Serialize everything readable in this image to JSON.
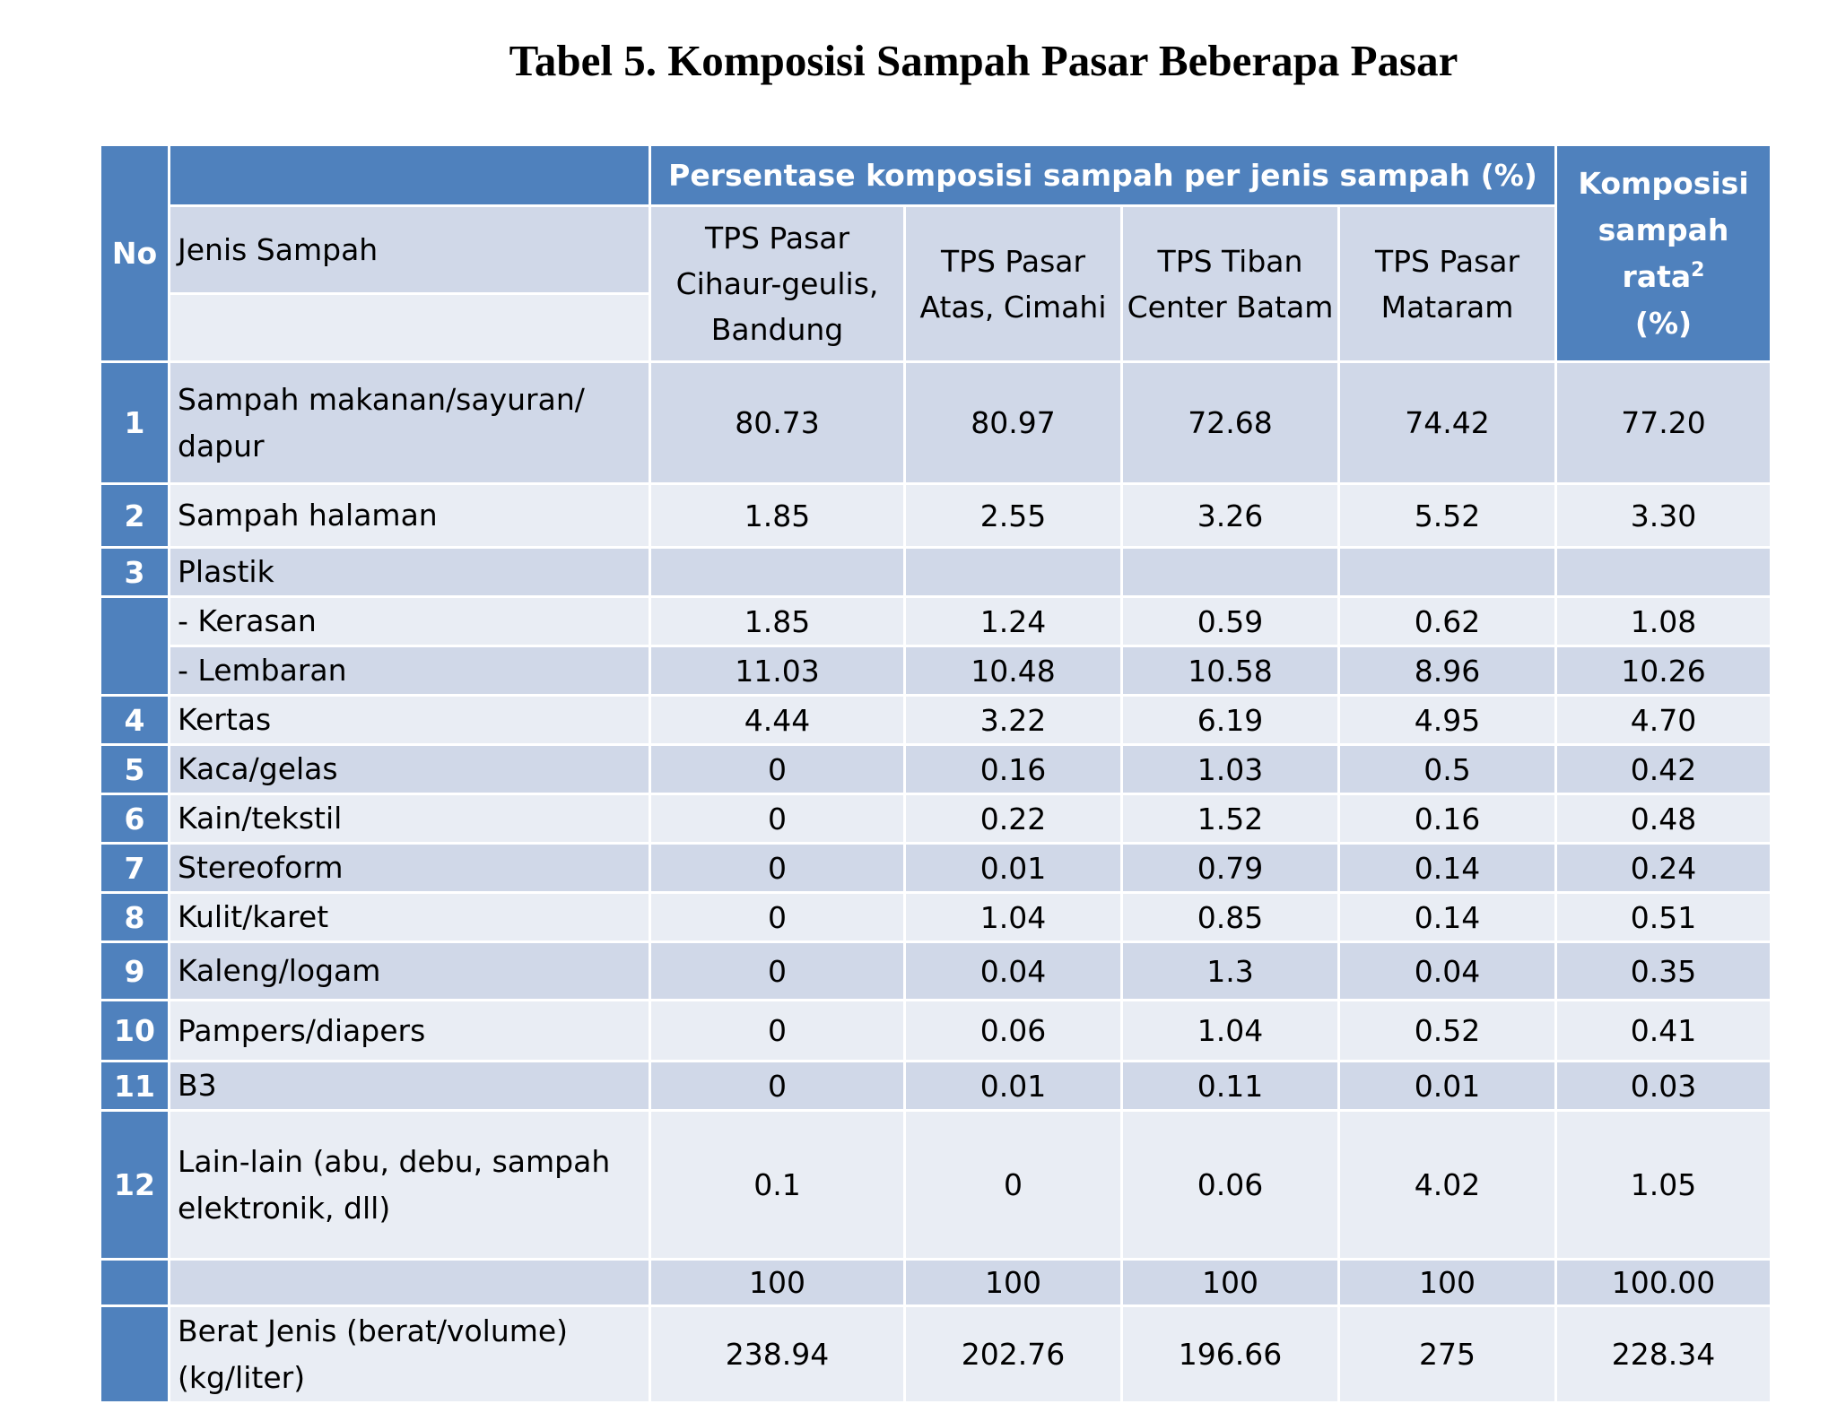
{
  "title": "Tabel 5. Komposisi Sampah Pasar Beberapa Pasar",
  "header": {
    "no": "No",
    "jenis": "Jenis Sampah",
    "group": "Persentase komposisi sampah per jenis sampah (%)",
    "columns": [
      "TPS Pasar Cihaur-geulis, Bandung",
      "TPS Pasar Atas, Cimahi",
      "TPS Tiban Center Batam",
      "TPS Pasar Mataram"
    ],
    "avg_line1": "Komposisi",
    "avg_line2": "sampah rata",
    "avg_sup": "2",
    "avg_line3": "(%)"
  },
  "rows": [
    {
      "no": "1",
      "label": "Sampah makanan/sayuran/ dapur",
      "values": [
        "80.73",
        "80.97",
        "72.68",
        "74.42",
        "77.20"
      ]
    },
    {
      "no": "2",
      "label": "Sampah halaman",
      "values": [
        "1.85",
        "2.55",
        "3.26",
        "5.52",
        "3.30"
      ]
    },
    {
      "no": "3",
      "label": "Plastik",
      "values": [
        "",
        "",
        "",
        "",
        ""
      ]
    },
    {
      "no": "",
      "label": "- Kerasan",
      "values": [
        "1.85",
        "1.24",
        "0.59",
        "0.62",
        "1.08"
      ]
    },
    {
      "no": "",
      "label": "- Lembaran",
      "values": [
        "11.03",
        "10.48",
        "10.58",
        "8.96",
        "10.26"
      ]
    },
    {
      "no": "4",
      "label": "Kertas",
      "values": [
        "4.44",
        "3.22",
        "6.19",
        "4.95",
        "4.70"
      ]
    },
    {
      "no": "5",
      "label": "Kaca/gelas",
      "values": [
        "0",
        "0.16",
        "1.03",
        "0.5",
        "0.42"
      ]
    },
    {
      "no": "6",
      "label": "Kain/tekstil",
      "values": [
        "0",
        "0.22",
        "1.52",
        "0.16",
        "0.48"
      ]
    },
    {
      "no": "7",
      "label": "Stereoform",
      "values": [
        "0",
        "0.01",
        "0.79",
        "0.14",
        "0.24"
      ]
    },
    {
      "no": "8",
      "label": "Kulit/karet",
      "values": [
        "0",
        "1.04",
        "0.85",
        "0.14",
        "0.51"
      ]
    },
    {
      "no": "9",
      "label": "Kaleng/logam",
      "values": [
        "0",
        "0.04",
        "1.3",
        "0.04",
        "0.35"
      ]
    },
    {
      "no": "10",
      "label": "Pampers/diapers",
      "values": [
        "0",
        "0.06",
        "1.04",
        "0.52",
        "0.41"
      ]
    },
    {
      "no": "11",
      "label": "B3",
      "values": [
        "0",
        "0.01",
        "0.11",
        "0.01",
        "0.03"
      ]
    },
    {
      "no": "12",
      "label": "Lain-lain (abu, debu, sampah elektronik, dll)",
      "values": [
        "0.1",
        "0",
        "0.06",
        "4.02",
        "1.05"
      ]
    },
    {
      "no": "",
      "label": "",
      "values": [
        "100",
        "100",
        "100",
        "100",
        "100.00"
      ]
    },
    {
      "no": "",
      "label": "Berat Jenis (berat/volume) (kg/liter)",
      "values": [
        "238.94",
        "202.76",
        "196.66",
        "275",
        "228.34"
      ]
    }
  ]
}
